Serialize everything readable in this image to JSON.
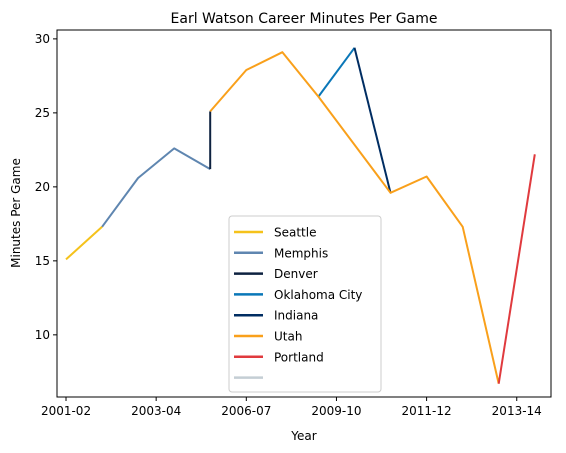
{
  "chart_data": {
    "type": "line",
    "title": "Earl Watson Career Minutes Per Game",
    "xlabel": "Year",
    "ylabel": "Minutes Per Game",
    "x_tick_labels": [
      "2001-02",
      "2003-04",
      "2006-07",
      "2009-10",
      "2011-12",
      "2013-14"
    ],
    "y_ticks": [
      10,
      15,
      20,
      25,
      30
    ],
    "xlim": [
      -0.25,
      13.45
    ],
    "ylim": [
      5.8,
      30.6
    ],
    "legend_position": "lower-center",
    "series": [
      {
        "name": "Seattle",
        "color": "#f5c21b",
        "points": [
          [
            0,
            15.1
          ],
          [
            1,
            17.3
          ]
        ]
      },
      {
        "name": "Memphis",
        "color": "#5f86b0",
        "points": [
          [
            1,
            17.3
          ],
          [
            2,
            20.6
          ],
          [
            3,
            22.6
          ],
          [
            4,
            21.2
          ]
        ]
      },
      {
        "name": "Denver",
        "color": "#0e2240",
        "points": [
          [
            4,
            21.2
          ],
          [
            4,
            25.1
          ]
        ]
      },
      {
        "name": "Oklahoma City",
        "color": "#0a77b8",
        "points": [
          [
            7,
            26.1
          ],
          [
            8,
            29.4
          ]
        ]
      },
      {
        "name": "Indiana",
        "color": "#002d62",
        "points": [
          [
            8,
            29.4
          ],
          [
            9,
            19.6
          ]
        ]
      },
      {
        "name": "Utah",
        "color": "#f9a01b",
        "points": [
          [
            4,
            25.1
          ],
          [
            5,
            27.9
          ],
          [
            6,
            29.1
          ],
          [
            7,
            26.1
          ],
          [
            9,
            19.6
          ],
          [
            10,
            20.7
          ],
          [
            11,
            17.3
          ],
          [
            12,
            6.7
          ]
        ]
      },
      {
        "name": "Portland",
        "color": "#e03a3e",
        "points": [
          [
            12,
            6.7
          ],
          [
            13,
            22.2
          ]
        ]
      },
      {
        "name": "",
        "color": "#c4ced4",
        "points": []
      }
    ]
  }
}
